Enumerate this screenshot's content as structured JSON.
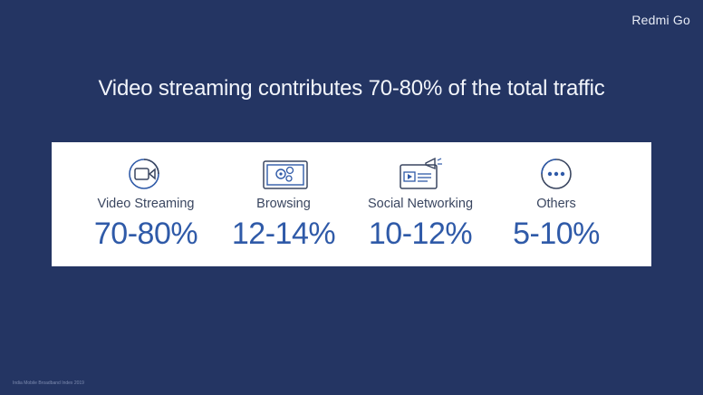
{
  "brand": "Redmi Go",
  "headline": "Video streaming contributes 70-80% of the total traffic",
  "categories": [
    {
      "label": "Video Streaming",
      "value": "70-80%",
      "icon": "video-camera-icon"
    },
    {
      "label": "Browsing",
      "value": "12-14%",
      "icon": "browser-gears-icon"
    },
    {
      "label": "Social Networking",
      "value": "10-12%",
      "icon": "megaphone-screen-icon"
    },
    {
      "label": "Others",
      "value": "5-10%",
      "icon": "more-dots-icon"
    }
  ],
  "footer": "India Mobile Broadband Index 2019",
  "colors": {
    "background": "#243563",
    "accent": "#2f5aa8",
    "panel": "#ffffff"
  }
}
